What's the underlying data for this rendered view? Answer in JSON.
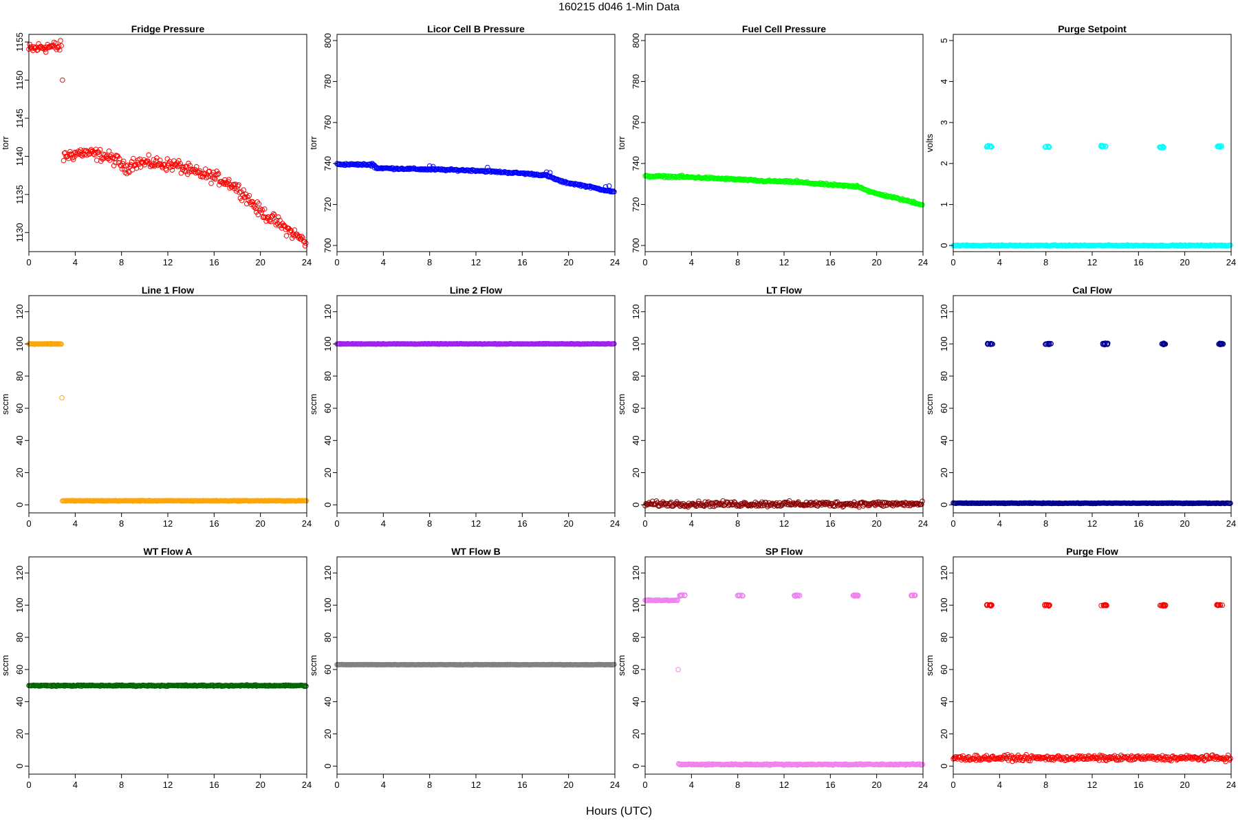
{
  "title": "160215    d046    1-Min Data",
  "xlabel": "Hours (UTC)",
  "chart_data": [
    {
      "type": "scatter",
      "title": "Fridge Pressure",
      "ylabel": "torr",
      "color": "#ff0000",
      "xlim": [
        0,
        24
      ],
      "xticks": [
        0,
        4,
        8,
        12,
        16,
        20,
        24
      ],
      "ylim": [
        1127.5,
        1156
      ],
      "yticks": [
        1130,
        1135,
        1140,
        1145,
        1150,
        1155
      ],
      "segments": [
        {
          "points": [
            [
              0,
              1154.0
            ],
            [
              1.5,
              1154.4
            ],
            [
              2.8,
              1154.3
            ]
          ],
          "noise": 0.6
        },
        {
          "points": [
            [
              3.0,
              1140.0
            ],
            [
              4.5,
              1140.5
            ],
            [
              6.5,
              1140.1
            ],
            [
              7.8,
              1139.3
            ],
            [
              8.3,
              1138.3
            ],
            [
              9.0,
              1139.2
            ],
            [
              11,
              1139.1
            ],
            [
              12.8,
              1138.8
            ],
            [
              14,
              1138.0
            ],
            [
              16,
              1137.3
            ],
            [
              17.5,
              1136.4
            ],
            [
              18.5,
              1135.2
            ],
            [
              19.8,
              1133.0
            ],
            [
              21.2,
              1131.6
            ],
            [
              22.5,
              1130.2
            ],
            [
              24,
              1128.7
            ]
          ],
          "noise": 0.6
        }
      ],
      "outliers": [
        [
          2.9,
          1150.0
        ]
      ]
    },
    {
      "type": "scatter",
      "title": "Licor Cell B Pressure",
      "ylabel": "torr",
      "color": "#0000ff",
      "xlim": [
        0,
        24
      ],
      "xticks": [
        0,
        4,
        8,
        12,
        16,
        20,
        24
      ],
      "ylim": [
        697,
        803
      ],
      "yticks": [
        700,
        720,
        740,
        760,
        780,
        800
      ],
      "segments": [
        {
          "points": [
            [
              0,
              739.6
            ],
            [
              3.2,
              739.4
            ],
            [
              3.4,
              737.8
            ],
            [
              8,
              737.1
            ],
            [
              12,
              736.6
            ],
            [
              13,
              736.2
            ],
            [
              16,
              735.2
            ],
            [
              18,
              734.3
            ],
            [
              19.5,
              731.0
            ],
            [
              21,
              729.5
            ],
            [
              22.5,
              727.8
            ],
            [
              24,
              726.0
            ]
          ],
          "noise": 0.35
        }
      ],
      "outliers": [
        [
          3.05,
          740.0
        ],
        [
          3.25,
          737.9
        ],
        [
          8.0,
          738.8
        ],
        [
          8.3,
          738.5
        ],
        [
          13.0,
          738.1
        ],
        [
          18.1,
          735.8
        ],
        [
          18.4,
          735.5
        ],
        [
          23.2,
          728.6
        ],
        [
          23.5,
          729.0
        ]
      ]
    },
    {
      "type": "scatter",
      "title": "Fuel Cell Pressure",
      "ylabel": "torr",
      "color": "#00ff00",
      "xlim": [
        0,
        24
      ],
      "xticks": [
        0,
        4,
        8,
        12,
        16,
        20,
        24
      ],
      "ylim": [
        697,
        803
      ],
      "yticks": [
        700,
        720,
        740,
        760,
        780,
        800
      ],
      "segments": [
        {
          "points": [
            [
              0,
              733.8
            ],
            [
              2,
              733.6
            ],
            [
              4,
              733.3
            ],
            [
              8,
              732.2
            ],
            [
              10,
              731.5
            ],
            [
              13,
              731.0
            ],
            [
              16,
              729.6
            ],
            [
              18.5,
              728.7
            ],
            [
              19.5,
              726.0
            ],
            [
              21,
              724.0
            ],
            [
              22.5,
              722.0
            ],
            [
              24,
              719.8
            ]
          ],
          "noise": 0.35
        }
      ],
      "outliers": [
        [
          3.2,
          734.2
        ],
        [
          8.2,
          732.5
        ],
        [
          13.1,
          731.8
        ],
        [
          18.3,
          729.3
        ],
        [
          23.2,
          721.5
        ]
      ]
    },
    {
      "type": "scatter",
      "title": "Purge Setpoint",
      "ylabel": "volts",
      "color": "#00ffff",
      "xlim": [
        0,
        24
      ],
      "xticks": [
        0,
        4,
        8,
        12,
        16,
        20,
        24
      ],
      "ylim": [
        -0.15,
        5.15
      ],
      "yticks": [
        0,
        1,
        2,
        3,
        4,
        5
      ],
      "segments": [
        {
          "points": [
            [
              0,
              0
            ],
            [
              24,
              0
            ]
          ],
          "noise": 0.01
        }
      ],
      "clusters": [
        {
          "x": 3.1,
          "y": 2.42
        },
        {
          "x": 8.1,
          "y": 2.4
        },
        {
          "x": 13.0,
          "y": 2.42
        },
        {
          "x": 18.0,
          "y": 2.4
        },
        {
          "x": 23.0,
          "y": 2.42
        }
      ]
    },
    {
      "type": "scatter",
      "title": "Line 1 Flow",
      "ylabel": "sccm",
      "color": "#ffa500",
      "xlim": [
        0,
        24
      ],
      "xticks": [
        0,
        4,
        8,
        12,
        16,
        20,
        24
      ],
      "ylim": [
        -5,
        130
      ],
      "yticks": [
        0,
        20,
        40,
        60,
        80,
        100,
        120
      ],
      "segments": [
        {
          "points": [
            [
              0,
              100
            ],
            [
              2.8,
              100
            ]
          ],
          "noise": 0.15
        },
        {
          "points": [
            [
              2.9,
              2.5
            ],
            [
              24,
              2.5
            ]
          ],
          "noise": 0.15
        }
      ],
      "outliers": [
        [
          2.85,
          66.5
        ]
      ]
    },
    {
      "type": "scatter",
      "title": "Line 2 Flow",
      "ylabel": "sccm",
      "color": "#a020f0",
      "xlim": [
        0,
        24
      ],
      "xticks": [
        0,
        4,
        8,
        12,
        16,
        20,
        24
      ],
      "ylim": [
        -5,
        130
      ],
      "yticks": [
        0,
        20,
        40,
        60,
        80,
        100,
        120
      ],
      "segments": [
        {
          "points": [
            [
              0,
              100
            ],
            [
              24,
              100
            ]
          ],
          "noise": 0.15
        }
      ]
    },
    {
      "type": "scatter",
      "title": "LT Flow",
      "ylabel": "sccm",
      "color": "#8b0000",
      "xlim": [
        0,
        24
      ],
      "xticks": [
        0,
        4,
        8,
        12,
        16,
        20,
        24
      ],
      "ylim": [
        -5,
        130
      ],
      "yticks": [
        0,
        20,
        40,
        60,
        80,
        100,
        120
      ],
      "segments": [
        {
          "points": [
            [
              0,
              0.5
            ],
            [
              24,
              0.5
            ]
          ],
          "noise": 1.2
        }
      ]
    },
    {
      "type": "scatter",
      "title": "Cal Flow",
      "ylabel": "sccm",
      "color": "#00008b",
      "xlim": [
        0,
        24
      ],
      "xticks": [
        0,
        4,
        8,
        12,
        16,
        20,
        24
      ],
      "ylim": [
        -5,
        130
      ],
      "yticks": [
        0,
        20,
        40,
        60,
        80,
        100,
        120
      ],
      "segments": [
        {
          "points": [
            [
              0,
              1
            ],
            [
              24,
              1
            ]
          ],
          "noise": 0.15
        }
      ],
      "clusters": [
        {
          "x": 3.2,
          "y": 100
        },
        {
          "x": 8.2,
          "y": 100
        },
        {
          "x": 13.1,
          "y": 100
        },
        {
          "x": 18.2,
          "y": 100
        },
        {
          "x": 23.1,
          "y": 100
        }
      ]
    },
    {
      "type": "scatter",
      "title": "WT Flow A",
      "ylabel": "sccm",
      "color": "#006400",
      "xlim": [
        0,
        24
      ],
      "xticks": [
        0,
        4,
        8,
        12,
        16,
        20,
        24
      ],
      "ylim": [
        -5,
        130
      ],
      "yticks": [
        0,
        20,
        40,
        60,
        80,
        100,
        120
      ],
      "segments": [
        {
          "points": [
            [
              0,
              50
            ],
            [
              24,
              50
            ]
          ],
          "noise": 0.3
        }
      ]
    },
    {
      "type": "scatter",
      "title": "WT Flow B",
      "ylabel": "sccm",
      "color": "#808080",
      "xlim": [
        0,
        24
      ],
      "xticks": [
        0,
        4,
        8,
        12,
        16,
        20,
        24
      ],
      "ylim": [
        -5,
        130
      ],
      "yticks": [
        0,
        20,
        40,
        60,
        80,
        100,
        120
      ],
      "segments": [
        {
          "points": [
            [
              0,
              63
            ],
            [
              24,
              63
            ]
          ],
          "noise": 0.1
        }
      ]
    },
    {
      "type": "scatter",
      "title": "SP Flow",
      "ylabel": "sccm",
      "color": "#ee82ee",
      "xlim": [
        0,
        24
      ],
      "xticks": [
        0,
        4,
        8,
        12,
        16,
        20,
        24
      ],
      "ylim": [
        -5,
        130
      ],
      "yticks": [
        0,
        20,
        40,
        60,
        80,
        100,
        120
      ],
      "segments": [
        {
          "points": [
            [
              0,
              103
            ],
            [
              2.8,
              103
            ]
          ],
          "noise": 0.2
        },
        {
          "points": [
            [
              2.9,
              1
            ],
            [
              24,
              1
            ]
          ],
          "noise": 0.3
        }
      ],
      "outliers": [
        [
          2.85,
          60
        ],
        [
          2.9,
          1.5
        ]
      ],
      "clusters": [
        {
          "x": 3.2,
          "y": 106
        },
        {
          "x": 8.2,
          "y": 106
        },
        {
          "x": 13.1,
          "y": 106
        },
        {
          "x": 18.2,
          "y": 106
        },
        {
          "x": 23.1,
          "y": 106
        }
      ]
    },
    {
      "type": "scatter",
      "title": "Purge Flow",
      "ylabel": "sccm",
      "color": "#ff0000",
      "xlim": [
        0,
        24
      ],
      "xticks": [
        0,
        4,
        8,
        12,
        16,
        20,
        24
      ],
      "ylim": [
        -5,
        130
      ],
      "yticks": [
        0,
        20,
        40,
        60,
        80,
        100,
        120
      ],
      "segments": [
        {
          "points": [
            [
              0,
              5
            ],
            [
              24,
              5
            ]
          ],
          "noise": 1.2
        }
      ],
      "clusters": [
        {
          "x": 3.1,
          "y": 100
        },
        {
          "x": 8.1,
          "y": 100
        },
        {
          "x": 13.0,
          "y": 100
        },
        {
          "x": 18.1,
          "y": 100
        },
        {
          "x": 23.0,
          "y": 100
        }
      ]
    }
  ]
}
